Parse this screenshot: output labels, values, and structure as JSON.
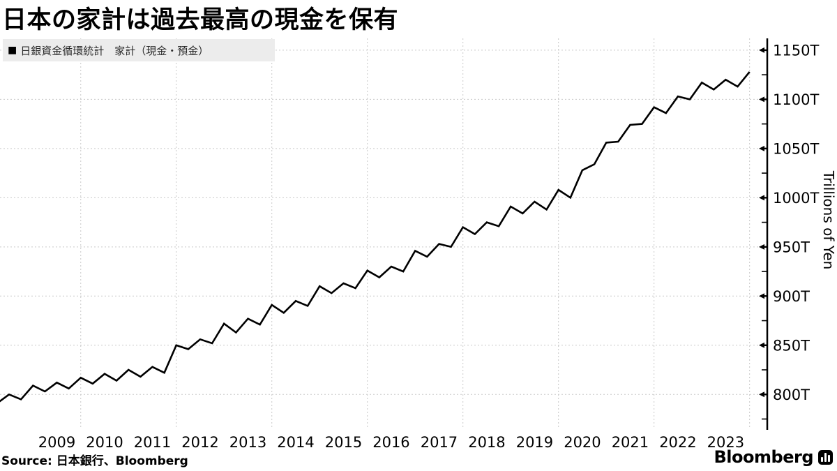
{
  "title": "日本の家計は過去最高の現金を保有",
  "legend": {
    "marker": "■",
    "label": "日銀資金循環統計　家計（現金・預金）"
  },
  "source": {
    "prefix": "Source:",
    "text": " 日本銀行、Bloomberg"
  },
  "branding": {
    "logo_text": "Bloomberg",
    "logo_icon": "bar-chart-badge-icon"
  },
  "colors": {
    "line": "#000000",
    "grid": "#c9c9c9",
    "axis": "#000000",
    "legend_bg": "#ececec",
    "text": "#000000"
  },
  "chart_data": {
    "type": "line",
    "title": "日本の家計は過去最高の現金を保有",
    "series_name": "日銀資金循環統計　家計（現金・預金）",
    "unit": "trillions of yen",
    "frequency": "quarterly",
    "x_start": 2008.25,
    "x_step": 0.25,
    "values": [
      791,
      800,
      795,
      809,
      803,
      812,
      806,
      817,
      811,
      821,
      814,
      825,
      818,
      828,
      822,
      850,
      846,
      856,
      852,
      872,
      863,
      877,
      871,
      891,
      883,
      895,
      890,
      910,
      903,
      913,
      908,
      926,
      919,
      930,
      925,
      946,
      940,
      953,
      950,
      970,
      963,
      975,
      971,
      991,
      984,
      996,
      988,
      1008,
      1000,
      1028,
      1034,
      1056,
      1057,
      1074,
      1075,
      1092,
      1086,
      1103,
      1100,
      1117,
      1110,
      1120,
      1113,
      1128
    ],
    "xlim": [
      2008.31,
      2024.37
    ],
    "ylim": [
      764,
      1162
    ],
    "x_tick_years": [
      2009,
      2010,
      2011,
      2012,
      2013,
      2014,
      2015,
      2016,
      2017,
      2018,
      2019,
      2020,
      2021,
      2022,
      2023
    ],
    "x_gridline_years": [
      2010,
      2012,
      2014,
      2016,
      2018,
      2020,
      2022,
      2024
    ],
    "y_tick_values": [
      800,
      850,
      900,
      950,
      1000,
      1050,
      1100,
      1150
    ],
    "y_tick_labels": [
      "800T",
      "850T",
      "900T",
      "950T",
      "1000T",
      "1050T",
      "1100T",
      "1150T"
    ],
    "y_minor_ticks": [
      775,
      825,
      875,
      925,
      975,
      1025,
      1075,
      1125
    ],
    "ylabel": "Trillions of Yen",
    "xlabel": "",
    "grid": "dashed",
    "legend_position": "top-left"
  }
}
